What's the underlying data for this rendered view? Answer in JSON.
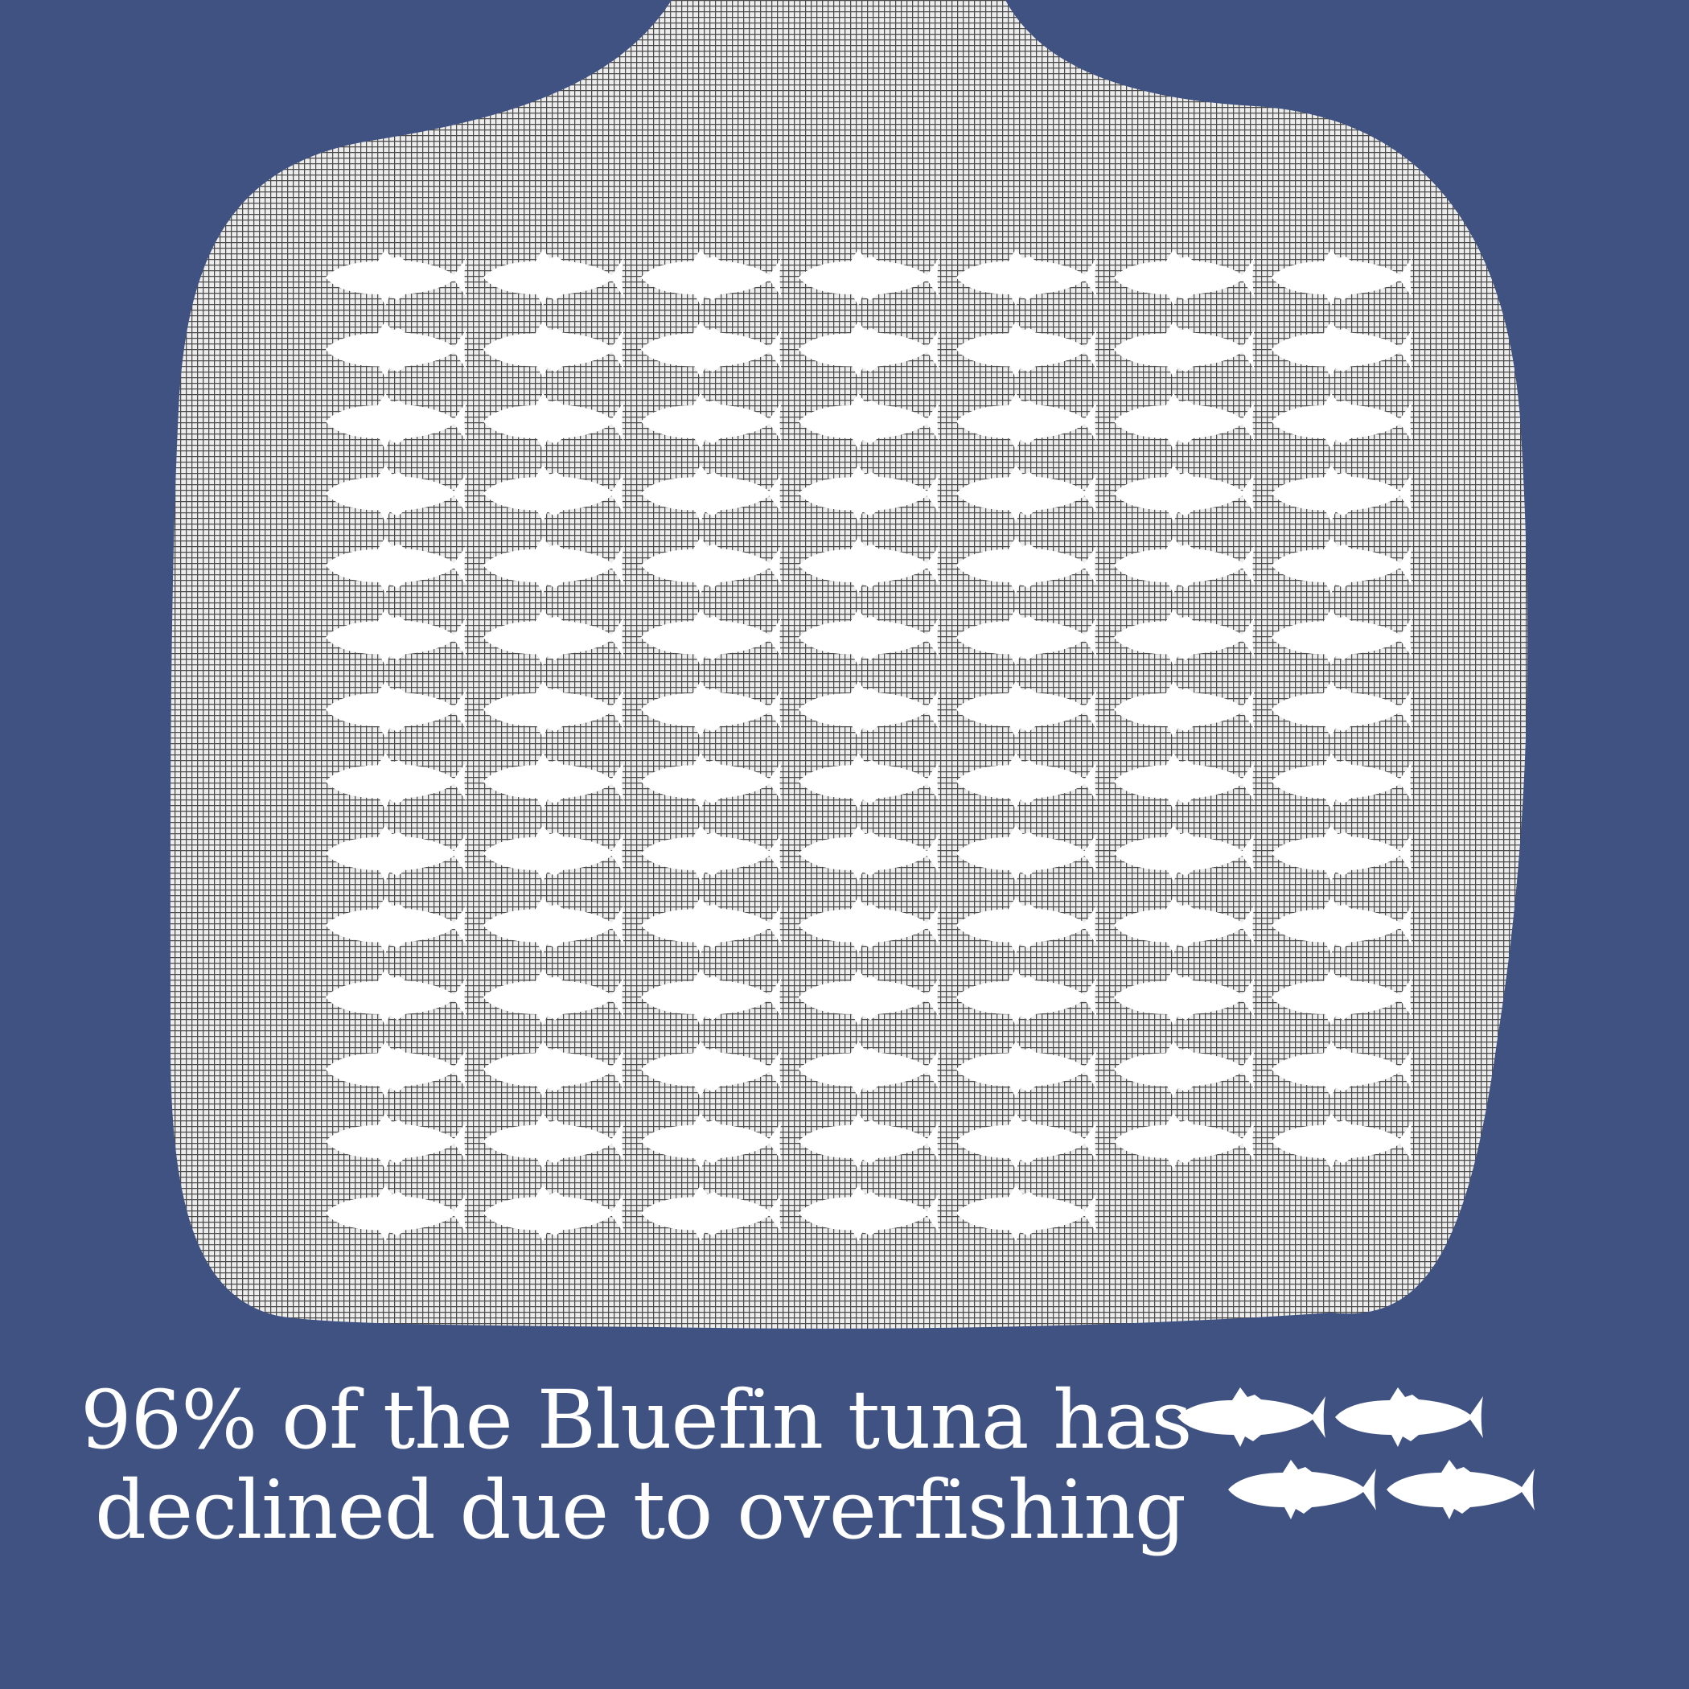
{
  "headline": {
    "line1": "96% of the Bluefin tuna has",
    "line2": "declined due to overfishing"
  },
  "net_school": {
    "rows": 14,
    "fish_per_row": 7,
    "last_row_fish": 5,
    "icon": "tuna-fish-icon"
  },
  "remaining_school": {
    "count": 4,
    "icon": "tuna-fish-icon"
  },
  "colors": {
    "background": "#3f5282",
    "net_fill": "#ededed",
    "net_mesh": "#4a4a4a",
    "fish": "#ffffff"
  }
}
